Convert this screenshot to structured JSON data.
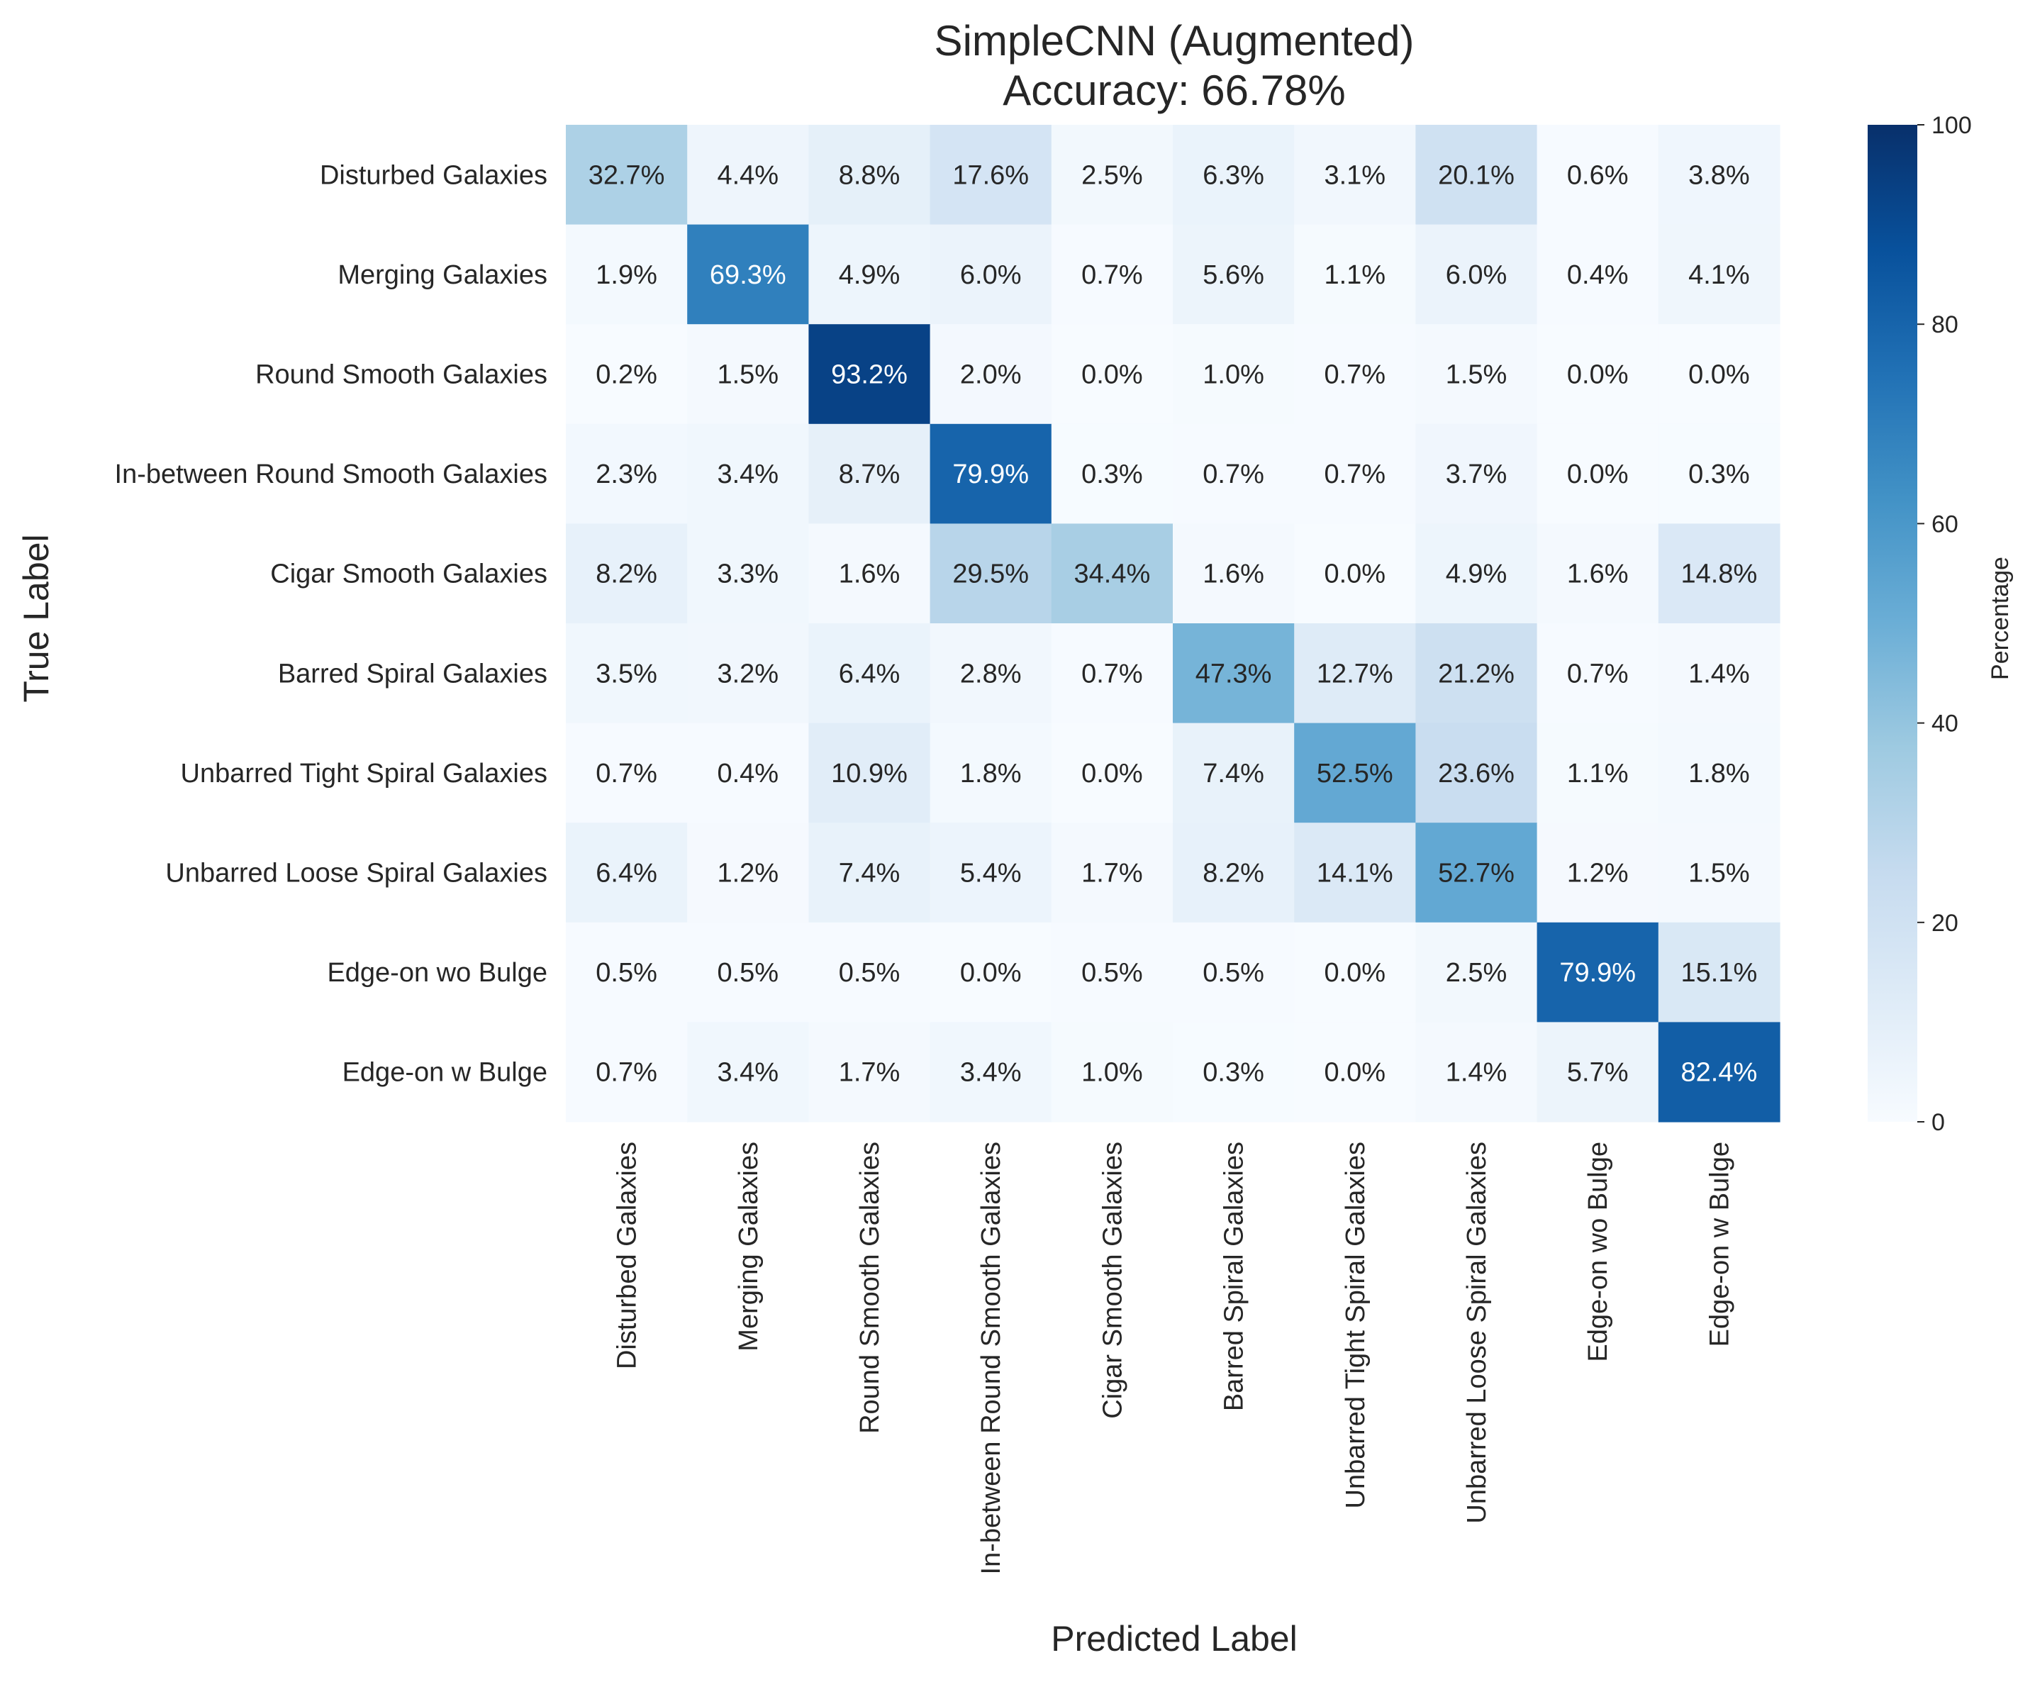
{
  "chart_data": {
    "type": "heatmap",
    "title": "SimpleCNN (Augmented)",
    "subtitle": "Accuracy: 66.78%",
    "xlabel": "Predicted Label",
    "ylabel": "True Label",
    "categories": [
      "Disturbed Galaxies",
      "Merging Galaxies",
      "Round Smooth Galaxies",
      "In-between Round Smooth Galaxies",
      "Cigar Smooth Galaxies",
      "Barred Spiral Galaxies",
      "Unbarred Tight Spiral Galaxies",
      "Unbarred Loose Spiral Galaxies",
      "Edge-on wo Bulge",
      "Edge-on w Bulge"
    ],
    "values": [
      [
        32.7,
        4.4,
        8.8,
        17.6,
        2.5,
        6.3,
        3.1,
        20.1,
        0.6,
        3.8
      ],
      [
        1.9,
        69.3,
        4.9,
        6.0,
        0.7,
        5.6,
        1.1,
        6.0,
        0.4,
        4.1
      ],
      [
        0.2,
        1.5,
        93.2,
        2.0,
        0.0,
        1.0,
        0.7,
        1.5,
        0.0,
        0.0
      ],
      [
        2.3,
        3.4,
        8.7,
        79.9,
        0.3,
        0.7,
        0.7,
        3.7,
        0.0,
        0.3
      ],
      [
        8.2,
        3.3,
        1.6,
        29.5,
        34.4,
        1.6,
        0.0,
        4.9,
        1.6,
        14.8
      ],
      [
        3.5,
        3.2,
        6.4,
        2.8,
        0.7,
        47.3,
        12.7,
        21.2,
        0.7,
        1.4
      ],
      [
        0.7,
        0.4,
        10.9,
        1.8,
        0.0,
        7.4,
        52.5,
        23.6,
        1.1,
        1.8
      ],
      [
        6.4,
        1.2,
        7.4,
        5.4,
        1.7,
        8.2,
        14.1,
        52.7,
        1.2,
        1.5
      ],
      [
        0.5,
        0.5,
        0.5,
        0.0,
        0.5,
        0.5,
        0.0,
        2.5,
        79.9,
        15.1
      ],
      [
        0.7,
        3.4,
        1.7,
        3.4,
        1.0,
        0.3,
        0.0,
        1.4,
        5.7,
        82.4
      ]
    ],
    "value_suffix": "%",
    "colorbar": {
      "label": "Percentage",
      "range": [
        0,
        100
      ],
      "ticks": [
        0,
        20,
        40,
        60,
        80,
        100
      ],
      "colormap": "Blues",
      "colors": [
        "#f7fbff",
        "#deebf7",
        "#c6dbef",
        "#9ecae1",
        "#6baed6",
        "#4292c6",
        "#2171b5",
        "#08519c",
        "#08306b"
      ]
    }
  }
}
